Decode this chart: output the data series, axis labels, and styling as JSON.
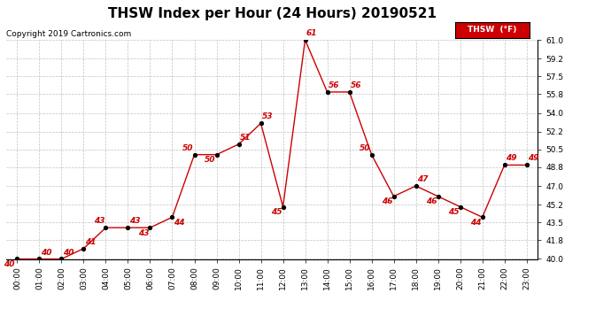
{
  "title": "THSW Index per Hour (24 Hours) 20190521",
  "copyright": "Copyright 2019 Cartronics.com",
  "legend_label": "THSW  (°F)",
  "hours": [
    0,
    1,
    2,
    3,
    4,
    5,
    6,
    7,
    8,
    9,
    10,
    11,
    12,
    13,
    14,
    15,
    16,
    17,
    18,
    19,
    20,
    21,
    22,
    23
  ],
  "values": [
    40,
    40,
    40,
    41,
    43,
    43,
    43,
    44,
    50,
    50,
    51,
    53,
    45,
    61,
    56,
    56,
    50,
    46,
    47,
    46,
    45,
    44,
    49,
    49
  ],
  "ylim": [
    40.0,
    61.0
  ],
  "yticks": [
    40.0,
    41.8,
    43.5,
    45.2,
    47.0,
    48.8,
    50.5,
    52.2,
    54.0,
    55.8,
    57.5,
    59.2,
    61.0
  ],
  "line_color": "#cc0000",
  "marker_color": "#000000",
  "label_color": "#cc0000",
  "background_color": "#ffffff",
  "grid_color": "#bbbbbb",
  "title_fontsize": 11,
  "label_fontsize": 6.5,
  "tick_fontsize": 6.5,
  "copyright_fontsize": 6.5
}
